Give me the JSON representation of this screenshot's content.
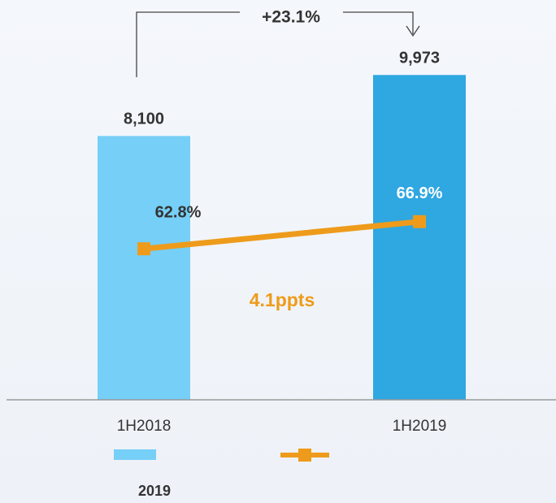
{
  "chart_data": {
    "type": "bar",
    "categories": [
      "1H2018",
      "1H2019"
    ],
    "series": [
      {
        "name": "2019",
        "type": "bar",
        "colors": [
          "#76cff7",
          "#2fa7e1"
        ],
        "values": [
          8100,
          9973
        ],
        "value_labels": [
          "8,100",
          "9,973"
        ]
      },
      {
        "type": "line",
        "axis": "y2",
        "color": "#ee9b1b",
        "values": [
          62.8,
          66.9
        ],
        "value_labels": [
          "62.8%",
          "66.9%"
        ]
      }
    ],
    "ylim": [
      0,
      12200
    ],
    "y2lim": [
      40,
      100
    ],
    "annotations": [
      "+23.1%",
      "4.1ppts"
    ]
  }
}
